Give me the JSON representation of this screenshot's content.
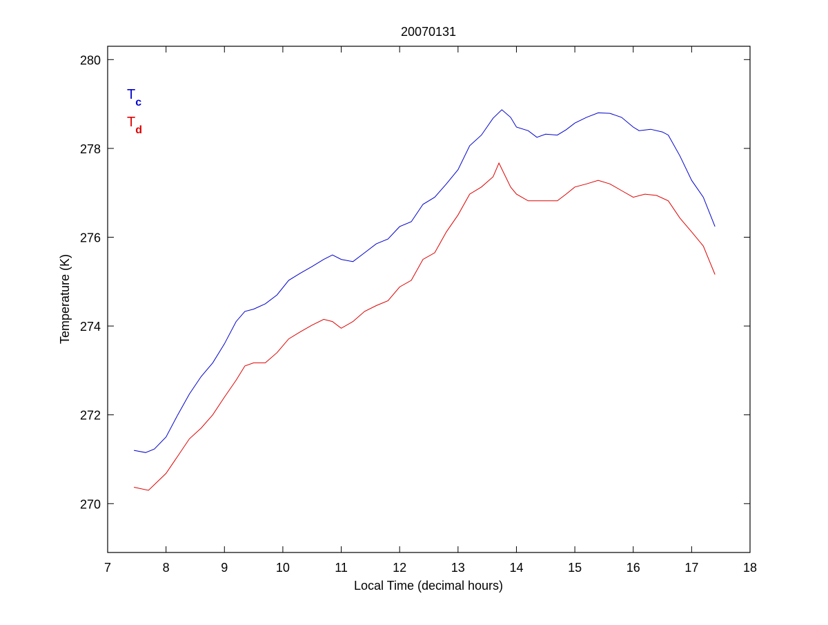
{
  "chart_data": {
    "type": "line",
    "title": "20070131",
    "xlabel": "Local Time (decimal hours)",
    "ylabel": "Temperature (K)",
    "xlim": [
      7,
      18
    ],
    "ylim": [
      268.9,
      280.3
    ],
    "xticks": [
      7,
      8,
      9,
      10,
      11,
      12,
      13,
      14,
      15,
      16,
      17,
      18
    ],
    "yticks": [
      270,
      272,
      274,
      276,
      278,
      280
    ],
    "grid": false,
    "legend_position": "top-left",
    "series": [
      {
        "name": "T",
        "subscript": "c",
        "color": "#0000cc",
        "x": [
          7.45,
          7.65,
          7.8,
          8.0,
          8.2,
          8.4,
          8.6,
          8.8,
          9.0,
          9.2,
          9.35,
          9.5,
          9.7,
          9.9,
          10.1,
          10.3,
          10.5,
          10.7,
          10.85,
          11.0,
          11.2,
          11.4,
          11.6,
          11.8,
          12.0,
          12.2,
          12.4,
          12.6,
          12.8,
          13.0,
          13.2,
          13.4,
          13.6,
          13.75,
          13.9,
          14.0,
          14.2,
          14.35,
          14.5,
          14.7,
          14.85,
          15.0,
          15.2,
          15.4,
          15.6,
          15.8,
          16.0,
          16.1,
          16.3,
          16.5,
          16.6,
          16.8,
          17.0,
          17.2,
          17.4
        ],
        "y": [
          271.2,
          271.15,
          271.23,
          271.5,
          272.0,
          272.47,
          272.86,
          273.17,
          273.6,
          274.1,
          274.33,
          274.38,
          274.5,
          274.7,
          275.03,
          275.19,
          275.34,
          275.5,
          275.6,
          275.5,
          275.45,
          275.65,
          275.85,
          275.96,
          276.24,
          276.35,
          276.74,
          276.9,
          277.2,
          277.52,
          278.06,
          278.3,
          278.68,
          278.87,
          278.7,
          278.48,
          278.4,
          278.25,
          278.32,
          278.3,
          278.42,
          278.57,
          278.7,
          278.8,
          278.79,
          278.7,
          278.48,
          278.4,
          278.43,
          278.37,
          278.3,
          277.83,
          277.28,
          276.9,
          276.24
        ]
      },
      {
        "name": "T",
        "subscript": "d",
        "color": "#dd0000",
        "x": [
          7.45,
          7.7,
          8.0,
          8.2,
          8.4,
          8.6,
          8.8,
          9.0,
          9.2,
          9.35,
          9.5,
          9.7,
          9.9,
          10.1,
          10.3,
          10.5,
          10.7,
          10.85,
          11.0,
          11.2,
          11.4,
          11.6,
          11.8,
          12.0,
          12.2,
          12.4,
          12.6,
          12.8,
          13.0,
          13.2,
          13.4,
          13.6,
          13.7,
          13.9,
          14.0,
          14.2,
          14.5,
          14.7,
          14.85,
          15.0,
          15.2,
          15.4,
          15.6,
          15.8,
          16.0,
          16.2,
          16.4,
          16.6,
          16.8,
          17.0,
          17.2,
          17.4
        ],
        "y": [
          270.37,
          270.3,
          270.68,
          271.07,
          271.46,
          271.7,
          272.0,
          272.4,
          272.78,
          273.1,
          273.17,
          273.17,
          273.4,
          273.71,
          273.87,
          274.02,
          274.15,
          274.1,
          273.95,
          274.1,
          274.33,
          274.46,
          274.57,
          274.88,
          275.03,
          275.5,
          275.65,
          276.12,
          276.5,
          276.97,
          277.13,
          277.36,
          277.67,
          277.13,
          276.97,
          276.82,
          276.82,
          276.82,
          276.97,
          277.13,
          277.2,
          277.28,
          277.2,
          277.05,
          276.9,
          276.97,
          276.94,
          276.82,
          276.43,
          276.12,
          275.8,
          275.16
        ]
      }
    ]
  }
}
